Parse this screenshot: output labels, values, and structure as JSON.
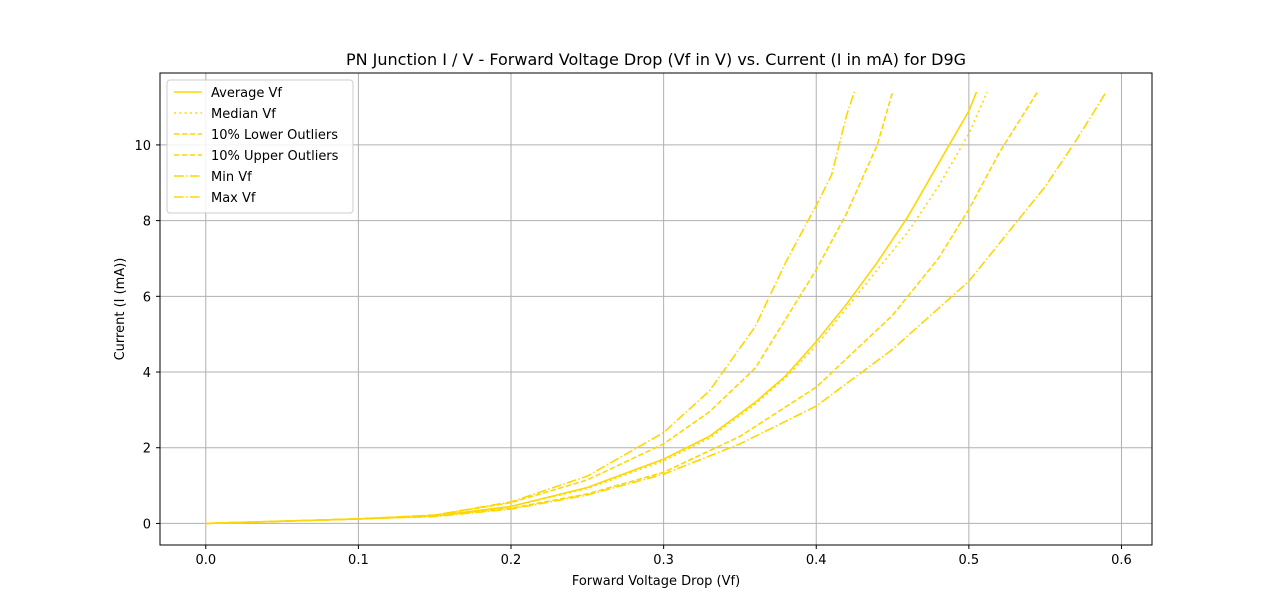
{
  "chart_data": {
    "type": "line",
    "title": "PN Junction I / V - Forward Voltage Drop (Vf in V) vs. Current (I in mA) for D9G",
    "xlabel": "Forward Voltage Drop (Vf)",
    "ylabel": "Current (I (mA))",
    "xlim": [
      -0.03,
      0.62
    ],
    "ylim": [
      -0.57,
      11.9
    ],
    "xticks": [
      0.0,
      0.1,
      0.2,
      0.3,
      0.4,
      0.5,
      0.6
    ],
    "xtick_labels": [
      "0.0",
      "0.1",
      "0.2",
      "0.3",
      "0.4",
      "0.5",
      "0.6"
    ],
    "yticks": [
      0,
      2,
      4,
      6,
      8,
      10
    ],
    "ytick_labels": [
      "0",
      "2",
      "4",
      "6",
      "8",
      "10"
    ],
    "grid": true,
    "legend_position": "top-left",
    "line_color": "#FFD700",
    "series": [
      {
        "name": "Average Vf",
        "dash": "solid",
        "x": [
          0.0,
          0.05,
          0.1,
          0.15,
          0.2,
          0.25,
          0.3,
          0.33,
          0.36,
          0.38,
          0.4,
          0.42,
          0.44,
          0.46,
          0.48,
          0.5,
          0.505
        ],
        "y": [
          0.0,
          0.06,
          0.12,
          0.2,
          0.45,
          0.95,
          1.7,
          2.3,
          3.2,
          3.9,
          4.8,
          5.8,
          6.9,
          8.1,
          9.5,
          10.9,
          11.4
        ]
      },
      {
        "name": "Median Vf",
        "dash": "dotted",
        "x": [
          0.0,
          0.05,
          0.1,
          0.15,
          0.2,
          0.25,
          0.3,
          0.33,
          0.36,
          0.38,
          0.4,
          0.42,
          0.44,
          0.46,
          0.48,
          0.5,
          0.512
        ],
        "y": [
          0.0,
          0.06,
          0.12,
          0.2,
          0.45,
          0.92,
          1.65,
          2.25,
          3.15,
          3.85,
          4.7,
          5.7,
          6.7,
          7.7,
          8.9,
          10.3,
          11.4
        ]
      },
      {
        "name": "10% Lower Outliers",
        "dash": "dashed",
        "x": [
          0.0,
          0.05,
          0.1,
          0.15,
          0.2,
          0.25,
          0.3,
          0.33,
          0.36,
          0.38,
          0.4,
          0.42,
          0.44,
          0.45
        ],
        "y": [
          0.0,
          0.06,
          0.12,
          0.22,
          0.55,
          1.15,
          2.1,
          2.95,
          4.1,
          5.4,
          6.7,
          8.2,
          10.0,
          11.4
        ]
      },
      {
        "name": "10% Upper Outliers",
        "dash": "dashed",
        "x": [
          0.0,
          0.05,
          0.1,
          0.15,
          0.2,
          0.25,
          0.3,
          0.35,
          0.4,
          0.45,
          0.48,
          0.5,
          0.52,
          0.545
        ],
        "y": [
          0.0,
          0.06,
          0.12,
          0.2,
          0.4,
          0.78,
          1.35,
          2.3,
          3.6,
          5.5,
          7.0,
          8.3,
          9.8,
          11.4
        ]
      },
      {
        "name": "Min Vf",
        "dash": "dashdot",
        "x": [
          0.0,
          0.05,
          0.1,
          0.15,
          0.2,
          0.25,
          0.3,
          0.33,
          0.36,
          0.38,
          0.4,
          0.41,
          0.42,
          0.425
        ],
        "y": [
          0.0,
          0.06,
          0.12,
          0.22,
          0.57,
          1.25,
          2.4,
          3.5,
          5.2,
          6.9,
          8.4,
          9.2,
          10.8,
          11.4
        ]
      },
      {
        "name": "Max Vf",
        "dash": "dashdot",
        "x": [
          0.0,
          0.05,
          0.1,
          0.15,
          0.2,
          0.25,
          0.3,
          0.35,
          0.4,
          0.45,
          0.5,
          0.53,
          0.55,
          0.57,
          0.59
        ],
        "y": [
          0.0,
          0.06,
          0.12,
          0.18,
          0.38,
          0.75,
          1.3,
          2.1,
          3.1,
          4.6,
          6.4,
          7.9,
          8.9,
          10.1,
          11.4
        ]
      }
    ]
  }
}
